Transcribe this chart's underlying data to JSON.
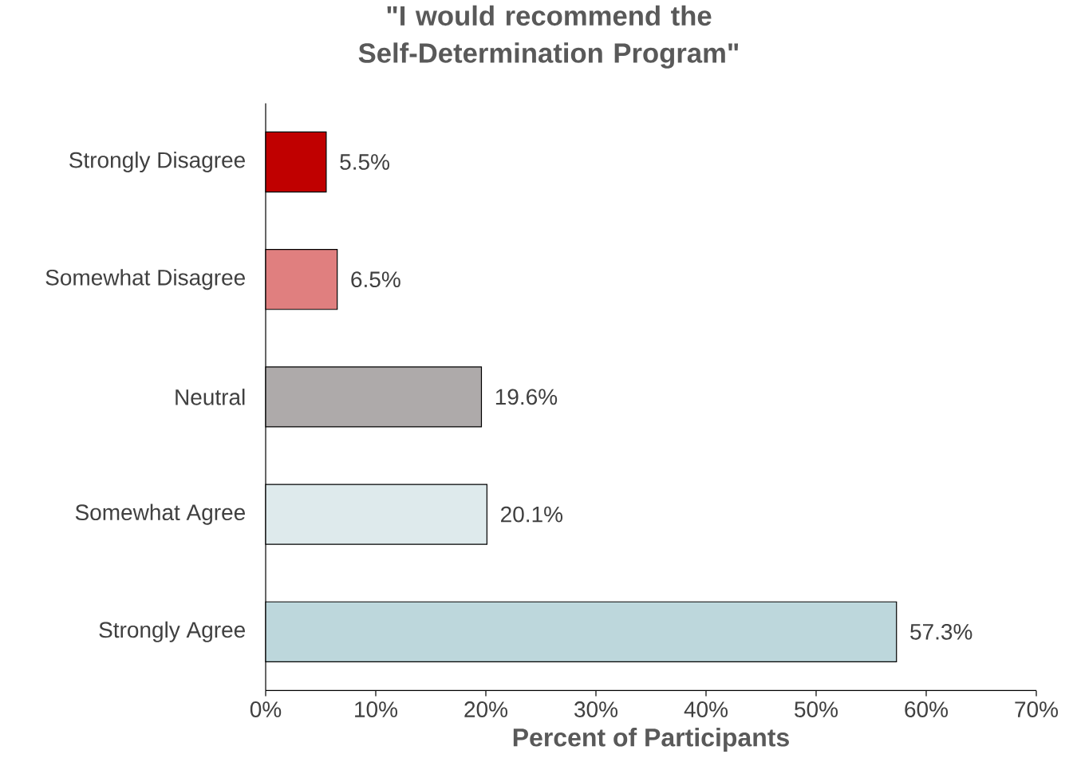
{
  "chart_data": {
    "type": "bar",
    "orientation": "horizontal",
    "title": "\"I would recommend the Self-Determination Program\"",
    "xlabel": "Percent of Participants",
    "categories": [
      "Strongly Disagree",
      "Somewhat Disagree",
      "Neutral",
      "Somewhat Agree",
      "Strongly Agree"
    ],
    "values": [
      5.5,
      6.5,
      19.6,
      20.1,
      57.3
    ],
    "colors": [
      "#c00000",
      "#e07f7f",
      "#aeaaaa",
      "#deeaec",
      "#bdd7dc"
    ],
    "value_labels": [
      "5.5%",
      "6.5%",
      "19.6%",
      "20.1%",
      "57.3%"
    ],
    "xlim": [
      0,
      70
    ],
    "xticks": [
      {
        "value": 0,
        "label": "0%"
      },
      {
        "value": 10,
        "label": "10%"
      },
      {
        "value": 20,
        "label": "20%"
      },
      {
        "value": 30,
        "label": "30%"
      },
      {
        "value": 40,
        "label": "40%"
      },
      {
        "value": 50,
        "label": "50%"
      },
      {
        "value": 60,
        "label": "60%"
      },
      {
        "value": 70,
        "label": "70%"
      }
    ]
  }
}
